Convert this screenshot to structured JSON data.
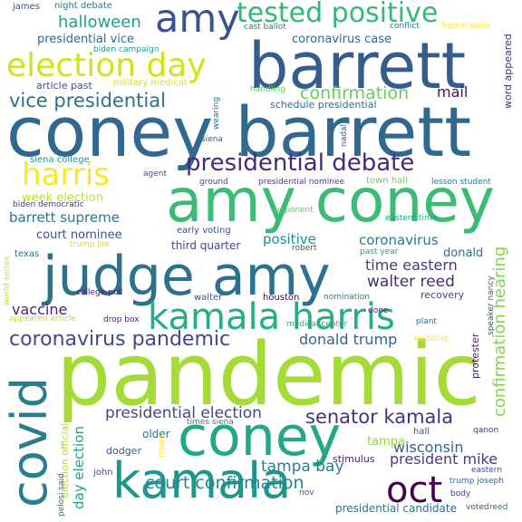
{
  "words": [
    {
      "text": "pandemic",
      "color": "#a5db36"
    },
    {
      "text": "coney barrett",
      "color": "#31688e"
    },
    {
      "text": "barrett",
      "color": "#365c8d"
    },
    {
      "text": "amy coney",
      "color": "#3bbb75"
    },
    {
      "text": "judge amy",
      "color": "#2c728e"
    },
    {
      "text": "coney",
      "color": "#22a884"
    },
    {
      "text": "kamala",
      "color": "#1f968b"
    },
    {
      "text": "covid",
      "color": "#287d8e"
    },
    {
      "text": "amy",
      "color": "#3b528b"
    },
    {
      "text": "kamala harris",
      "color": "#26ad81"
    },
    {
      "text": "election day",
      "color": "#d2e21b"
    },
    {
      "text": "tested positive",
      "color": "#35b779"
    },
    {
      "text": "presidential debate",
      "color": "#482878"
    },
    {
      "text": "oct",
      "color": "#440154"
    },
    {
      "text": "harris",
      "color": "#fde725"
    },
    {
      "text": "coronavirus pandemic",
      "color": "#3e4a89"
    },
    {
      "text": "senator kamala",
      "color": "#46327e"
    },
    {
      "text": "vice presidential",
      "color": "#2d708e"
    },
    {
      "text": "court confirmation",
      "color": "#24868e"
    },
    {
      "text": "confirmation hearing",
      "color": "#84d44b"
    },
    {
      "text": "confirmation",
      "color": "#6ccd5a"
    },
    {
      "text": "presidential election",
      "color": "#3e4989"
    },
    {
      "text": "halloween",
      "color": "#1f9e89"
    },
    {
      "text": "tampa bay",
      "color": "#277f8e"
    },
    {
      "text": "president mike",
      "color": "#433e85"
    },
    {
      "text": "wisconsin",
      "color": "#355f8d"
    },
    {
      "text": "donald trump",
      "color": "#33638d"
    },
    {
      "text": "walter reed",
      "color": "#472c7a"
    },
    {
      "text": "time eastern",
      "color": "#443983"
    },
    {
      "text": "barrett supreme",
      "color": "#2a788e"
    },
    {
      "text": "positive",
      "color": "#21918c"
    },
    {
      "text": "coronavirus",
      "color": "#297b8e"
    },
    {
      "text": "vaccine",
      "color": "#482475"
    },
    {
      "text": "day election",
      "color": "#20a486"
    },
    {
      "text": "mail",
      "color": "#471063"
    },
    {
      "text": "coronavirus case",
      "color": "#31678e"
    },
    {
      "text": "presidential vice",
      "color": "#2f6c8e"
    },
    {
      "text": "week election",
      "color": "#c2df23"
    },
    {
      "text": "court nominee",
      "color": "#3a548c"
    },
    {
      "text": "donald",
      "color": "#2c718e"
    },
    {
      "text": "stimulus",
      "color": "#482173"
    },
    {
      "text": "recovery",
      "color": "#404588"
    },
    {
      "text": "older",
      "color": "#2b748e"
    },
    {
      "text": "dodger",
      "color": "#38598c"
    },
    {
      "text": "tampa",
      "color": "#93d741"
    },
    {
      "text": "protester",
      "color": "#481a6c"
    },
    {
      "text": "word appeared",
      "color": "#46307e"
    },
    {
      "text": "third quarter",
      "color": "#3d4d8a"
    },
    {
      "text": "article past",
      "color": "#3c4f8a"
    },
    {
      "text": "schedule presidential",
      "color": "#2e6e8e"
    },
    {
      "text": "military medical",
      "color": "#d8e219"
    },
    {
      "text": "presidential candidate",
      "color": "#2d718e"
    },
    {
      "text": "election official",
      "color": "#addc30"
    },
    {
      "text": "james",
      "color": "#3b518b"
    },
    {
      "text": "night debate",
      "color": "#2a768e"
    },
    {
      "text": "cast ballot",
      "color": "#287c8e"
    },
    {
      "text": "conflict",
      "color": "#297a8e"
    },
    {
      "text": "french open",
      "color": "#fde725"
    },
    {
      "text": "biden campaign",
      "color": "#1f9a8a"
    },
    {
      "text": "wearing",
      "color": "#2d708e"
    },
    {
      "text": "handling",
      "color": "#5ec962"
    },
    {
      "text": "siena",
      "color": "#33638d"
    },
    {
      "text": "nadal",
      "color": "#355f8d"
    },
    {
      "text": "siena college",
      "color": "#1f988b"
    },
    {
      "text": "town hall",
      "color": "#6ccd5a"
    },
    {
      "text": "lesson student",
      "color": "#2a788e"
    },
    {
      "text": "agent",
      "color": "#39568c"
    },
    {
      "text": "ground",
      "color": "#3f4788"
    },
    {
      "text": "presidential nominee",
      "color": "#433e85"
    },
    {
      "text": "biden democratic",
      "color": "#424086"
    },
    {
      "text": "opponent",
      "color": "#5ec962"
    },
    {
      "text": "eastern time",
      "color": "#1fa187"
    },
    {
      "text": "early voting",
      "color": "#3f4889"
    },
    {
      "text": "trump joe",
      "color": "#d8e219"
    },
    {
      "text": "texas",
      "color": "#2e6f8e"
    },
    {
      "text": "robert",
      "color": "#39568c"
    },
    {
      "text": "past year",
      "color": "#1f9e89"
    },
    {
      "text": "college poll",
      "color": "#48186a"
    },
    {
      "text": "walter",
      "color": "#3d4e8a"
    },
    {
      "text": "houston",
      "color": "#440154"
    },
    {
      "text": "nomination",
      "color": "#2a788e"
    },
    {
      "text": "world series",
      "color": "#cae11f"
    },
    {
      "text": "appeared article",
      "color": "#c2df23"
    },
    {
      "text": "drop box",
      "color": "#481f70"
    },
    {
      "text": "medical center",
      "color": "#22a884"
    },
    {
      "text": "done",
      "color": "#472d7b"
    },
    {
      "text": "plant",
      "color": "#2c728e"
    },
    {
      "text": "wedding",
      "color": "#fde725"
    },
    {
      "text": "speaker nancy",
      "color": "#3b528b"
    },
    {
      "text": "times siena",
      "color": "#26828e"
    },
    {
      "text": "hall",
      "color": "#3b528b"
    },
    {
      "text": "qanon",
      "color": "#453781"
    },
    {
      "text": "times",
      "color": "#fde725"
    },
    {
      "text": "john",
      "color": "#3e4c8a"
    },
    {
      "text": "trump joseph",
      "color": "#2d708e"
    },
    {
      "text": "eastern",
      "color": "#3f4788"
    },
    {
      "text": "body",
      "color": "#424086"
    },
    {
      "text": "voted",
      "color": "#3b528b"
    },
    {
      "text": "pelosi said",
      "color": "#2c718e"
    },
    {
      "text": "nov",
      "color": "#3c4f8a"
    },
    {
      "text": "reed",
      "color": "#2d708e"
    }
  ]
}
